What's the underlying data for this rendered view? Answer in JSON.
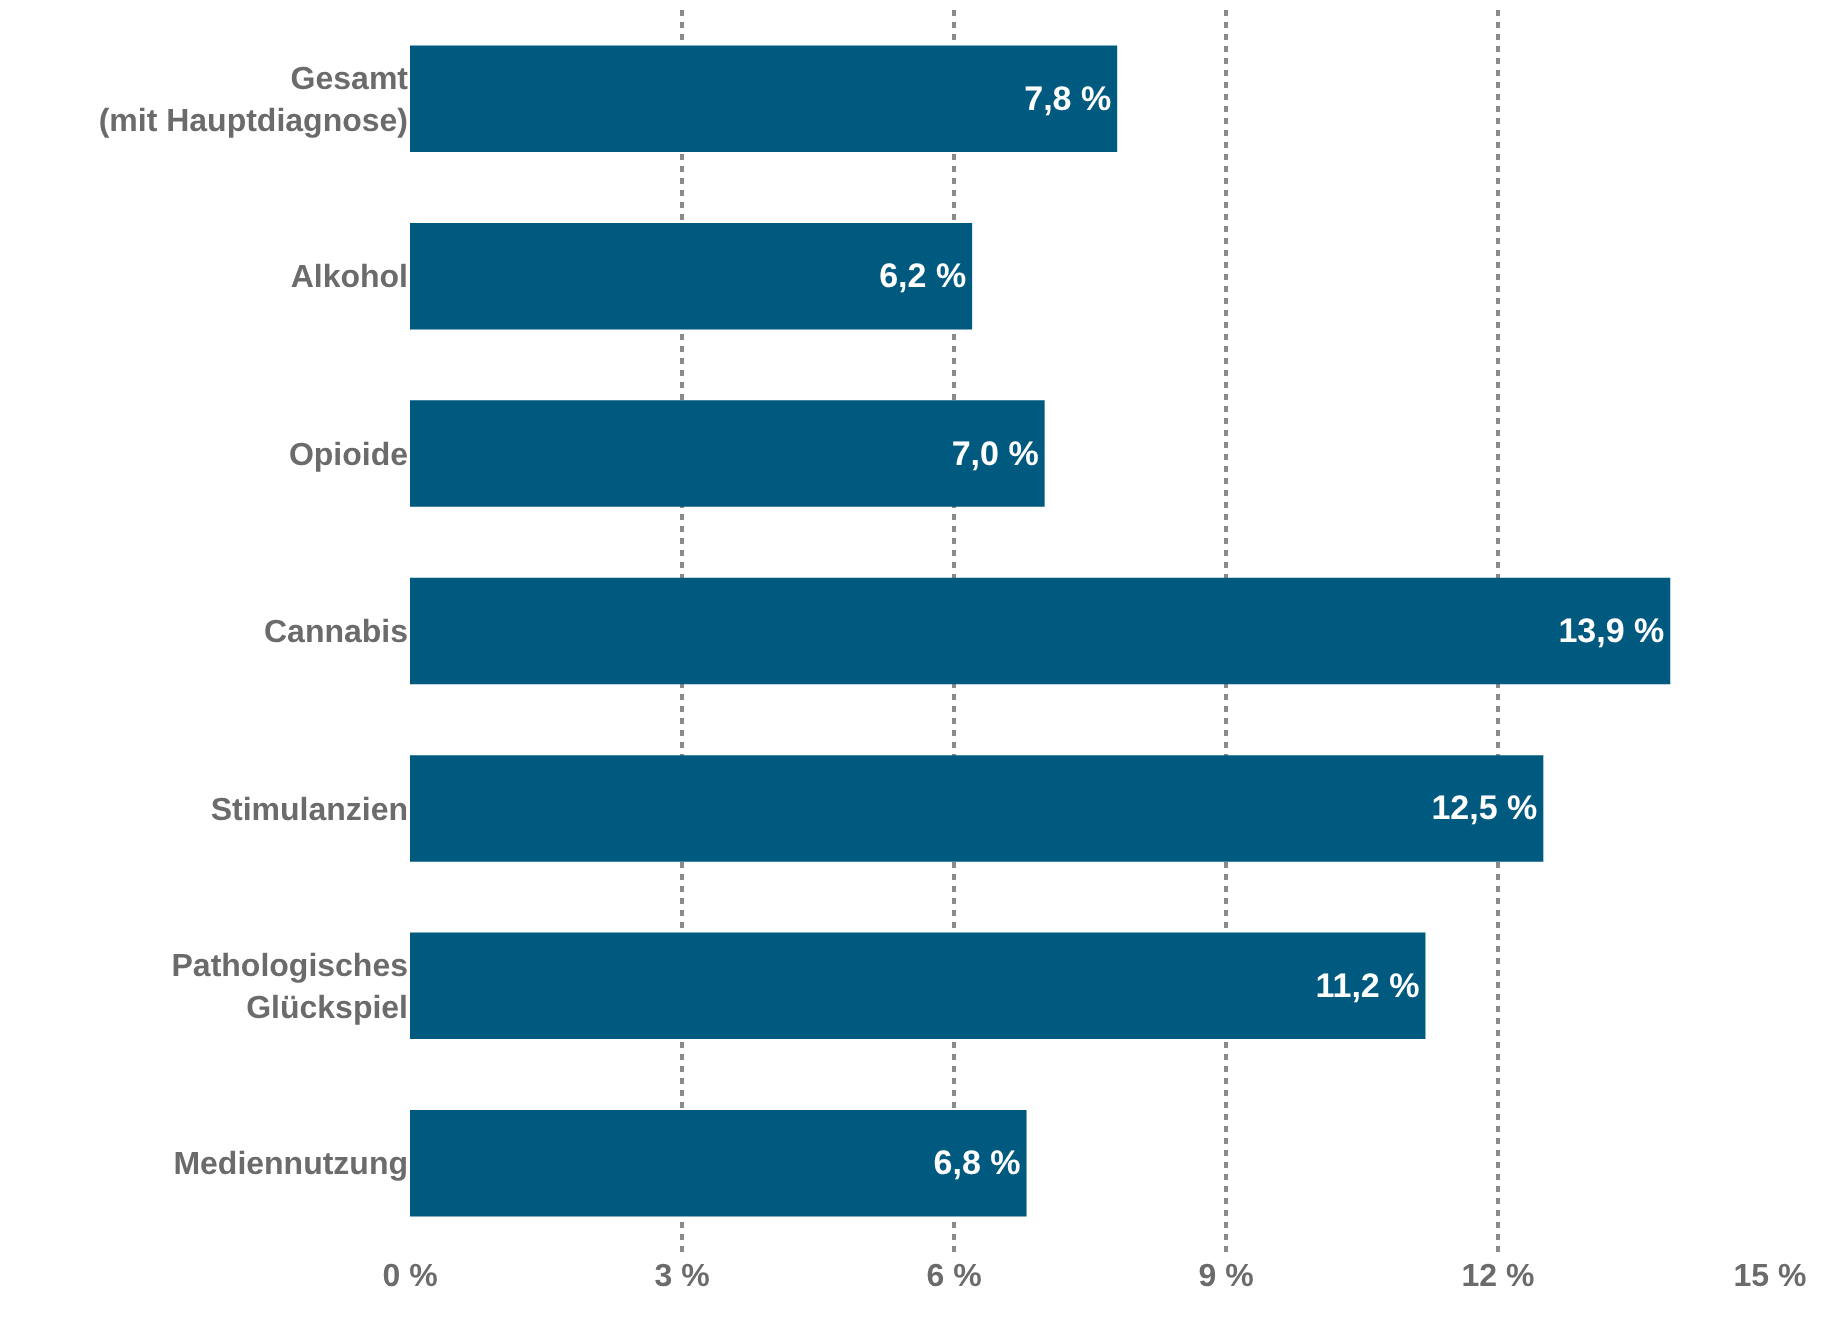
{
  "chart_data": {
    "type": "bar",
    "orientation": "horizontal",
    "categories": [
      "Gesamt\n(mit Hauptdiagnose)",
      "Alkohol",
      "Opioide",
      "Cannabis",
      "Stimulanzien",
      "Pathologisches\nGlückspiel",
      "Mediennutzung"
    ],
    "values": [
      7.8,
      6.2,
      7.0,
      13.9,
      12.5,
      11.2,
      6.8
    ],
    "value_labels": [
      "7,8 %",
      "6,2 %",
      "7,0 %",
      "13,9 %",
      "12,5 %",
      "11,2 %",
      "6,8 %"
    ],
    "color": "#005a7f",
    "xlim": [
      0,
      15
    ],
    "xticks": [
      {
        "value": 0,
        "label": "0 %"
      },
      {
        "value": 3,
        "label": "3 %"
      },
      {
        "value": 6,
        "label": "6 %"
      },
      {
        "value": 9,
        "label": "9 %"
      },
      {
        "value": 12,
        "label": "12 %"
      },
      {
        "value": 15,
        "label": "15 %"
      }
    ],
    "grid": "x"
  }
}
